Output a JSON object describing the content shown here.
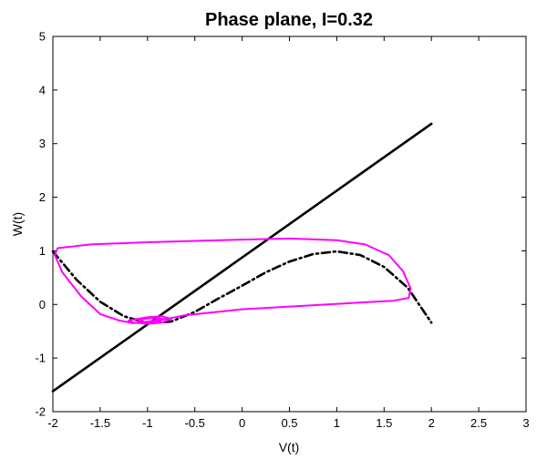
{
  "chart_data": {
    "type": "line",
    "title": "Phase plane, I=0.32",
    "xlabel": "V(t)",
    "ylabel": "W(t)",
    "xlim": [
      -2,
      3
    ],
    "ylim": [
      -2,
      5
    ],
    "xticks": [
      -2,
      -1.5,
      -1,
      -0.5,
      0,
      0.5,
      1,
      1.5,
      2,
      2.5,
      3
    ],
    "yticks": [
      -2,
      -1,
      0,
      1,
      2,
      3,
      4,
      5
    ],
    "grid": false,
    "legend": "none",
    "series": [
      {
        "style": "solid",
        "color": "#000000",
        "x": [
          -2,
          2
        ],
        "y": [
          -1.62,
          3.37
        ]
      },
      {
        "style": "dash-dot",
        "color": "#000000",
        "x": [
          -2,
          -1.75,
          -1.5,
          -1.25,
          -1,
          -0.75,
          -0.5,
          -0.25,
          0,
          0.25,
          0.5,
          0.75,
          1,
          1.25,
          1.5,
          1.75,
          2
        ],
        "y": [
          0.99,
          0.46,
          0.05,
          -0.22,
          -0.35,
          -0.32,
          -0.14,
          0.11,
          0.35,
          0.6,
          0.8,
          0.94,
          0.99,
          0.92,
          0.7,
          0.31,
          -0.34
        ]
      },
      {
        "style": "solid",
        "color": "#ff00ff",
        "x": [
          -1.95,
          -1.6,
          -1.0,
          0.0,
          0.5,
          1.0,
          1.3,
          1.55,
          1.7,
          1.78,
          1.76,
          1.6,
          1.3,
          0.8,
          0.0,
          -0.6,
          -0.8,
          -1.0,
          -1.15,
          -1.3,
          -1.5,
          -1.7,
          -1.9,
          -1.98,
          -1.95
        ],
        "y": [
          1.05,
          1.12,
          1.16,
          1.21,
          1.23,
          1.2,
          1.12,
          0.92,
          0.62,
          0.3,
          0.12,
          0.07,
          0.04,
          -0.01,
          -0.09,
          -0.2,
          -0.27,
          -0.32,
          -0.35,
          -0.3,
          -0.18,
          0.15,
          0.6,
          0.92,
          1.05
        ]
      },
      {
        "style": "solid",
        "color": "#ff00ff",
        "x": [
          -1.2,
          -1.0,
          -0.85,
          -0.75,
          -0.85,
          -1.0,
          -1.15,
          -1.2
        ],
        "y": [
          -0.3,
          -0.24,
          -0.22,
          -0.27,
          -0.34,
          -0.36,
          -0.34,
          -0.3
        ]
      },
      {
        "style": "solid",
        "color": "#ff00ff",
        "x": [
          -1.1,
          -0.95,
          -0.82,
          -0.9,
          -1.05,
          -1.1
        ],
        "y": [
          -0.29,
          -0.25,
          -0.27,
          -0.32,
          -0.33,
          -0.29
        ]
      }
    ]
  }
}
